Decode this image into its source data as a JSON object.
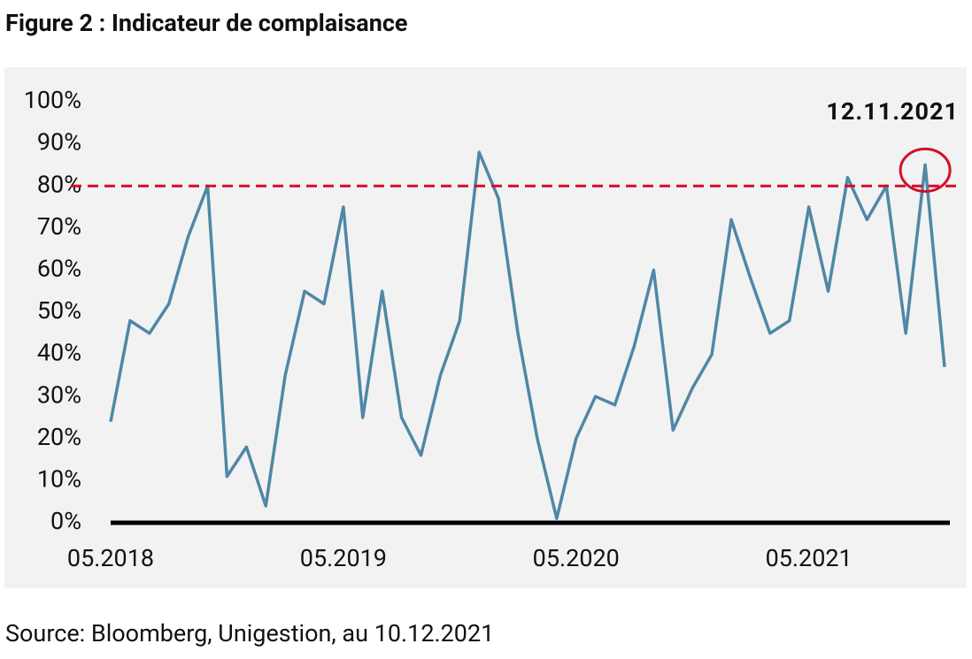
{
  "chart_data": {
    "type": "line",
    "title": "Figure 2 : Indicateur de complaisance",
    "source": "Source: Bloomberg, Unigestion, au 10.12.2021",
    "x": [
      "05.2018",
      "06.2018",
      "07.2018",
      "08.2018",
      "09.2018",
      "10.2018",
      "11.2018",
      "12.2018",
      "01.2019",
      "02.2019",
      "03.2019",
      "04.2019",
      "05.2019",
      "06.2019",
      "07.2019",
      "08.2019",
      "09.2019",
      "10.2019",
      "11.2019",
      "12.2019",
      "01.2020",
      "02.2020",
      "03.2020",
      "04.2020",
      "05.2020",
      "06.2020",
      "07.2020",
      "08.2020",
      "09.2020",
      "10.2020",
      "11.2020",
      "12.2020",
      "01.2021",
      "02.2021",
      "03.2021",
      "04.2021",
      "05.2021",
      "06.2021",
      "07.2021",
      "08.2021",
      "09.2021",
      "10.2021",
      "11.2021",
      "12.2021"
    ],
    "series": [
      {
        "color": "#4f87a6",
        "values": [
          24,
          48,
          45,
          52,
          68,
          80,
          11,
          18,
          4,
          35,
          55,
          52,
          75,
          25,
          55,
          25,
          16,
          35,
          48,
          88,
          77,
          45,
          20,
          1,
          20,
          30,
          28,
          42,
          60,
          22,
          32,
          40,
          72,
          58,
          45,
          48,
          75,
          55,
          82,
          72,
          80,
          45,
          85,
          37
        ]
      }
    ],
    "ylim": [
      0,
      100
    ],
    "yticks": [
      {
        "value": 0,
        "label": "0%"
      },
      {
        "value": 10,
        "label": "10%"
      },
      {
        "value": 20,
        "label": "20%"
      },
      {
        "value": 30,
        "label": "30%"
      },
      {
        "value": 40,
        "label": "40%"
      },
      {
        "value": 50,
        "label": "50%"
      },
      {
        "value": 60,
        "label": "60%"
      },
      {
        "value": 70,
        "label": "70%"
      },
      {
        "value": 80,
        "label": "80%"
      },
      {
        "value": 90,
        "label": "90%"
      },
      {
        "value": 100,
        "label": "100%"
      }
    ],
    "xticks": [
      "05.2018",
      "05.2019",
      "05.2020",
      "05.2021"
    ],
    "reference_line": {
      "value": 80,
      "color": "#d0102a"
    },
    "annotation": {
      "label": "12.11.2021",
      "x": "11.2021",
      "color": "#d0102a"
    }
  }
}
